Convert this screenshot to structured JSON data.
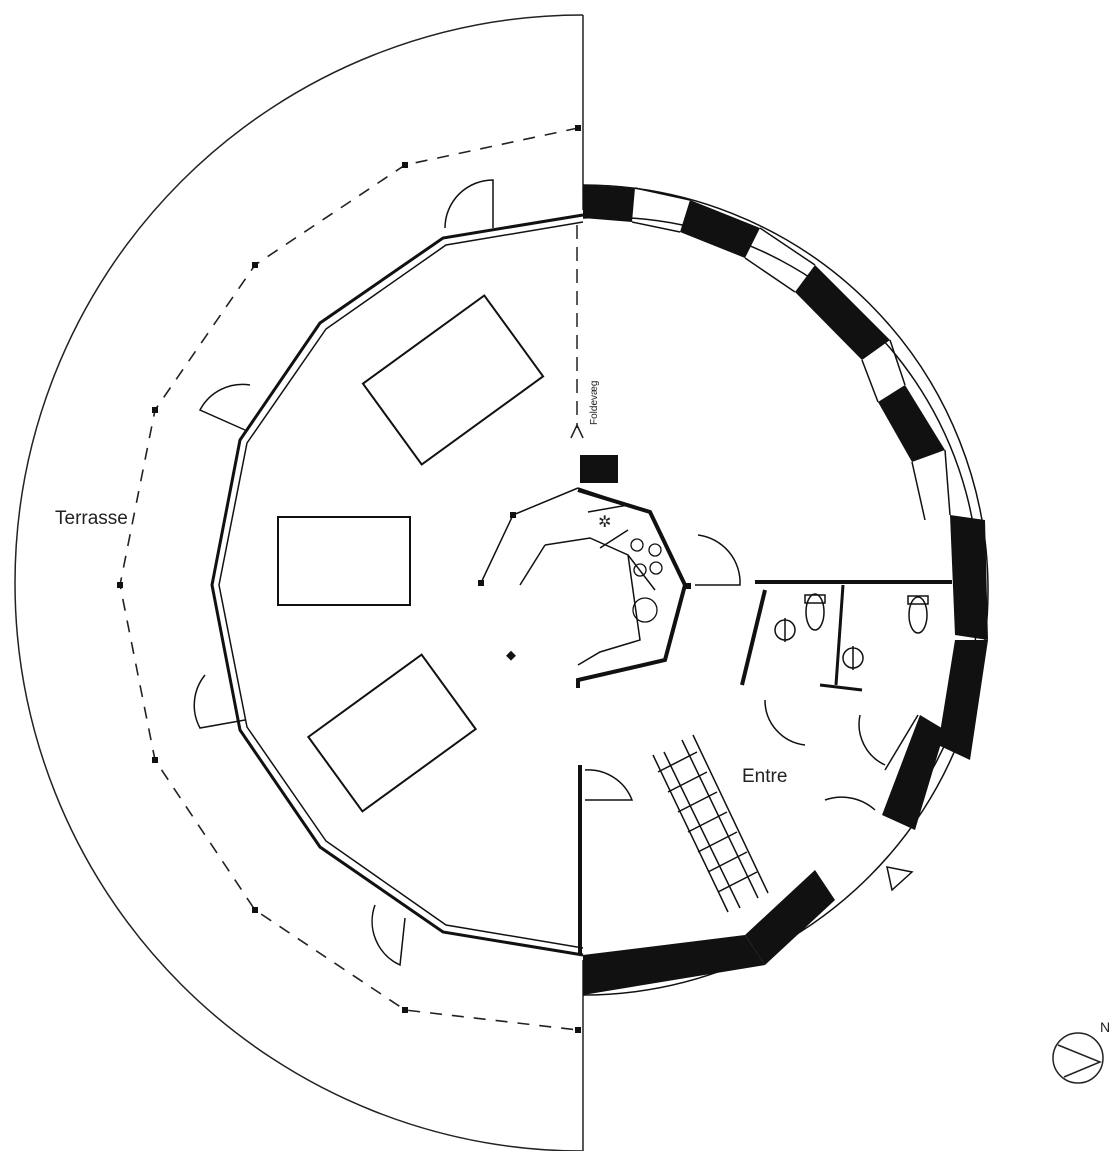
{
  "labels": {
    "terrasse": "Terrasse",
    "entre": "Entre",
    "foldevaeg": "Foldevæg",
    "north": "N"
  },
  "colors": {
    "line": "#111111",
    "wall_fill": "#111111",
    "background": "#ffffff"
  },
  "icons": {
    "north_arrow": "compass-north-icon"
  }
}
